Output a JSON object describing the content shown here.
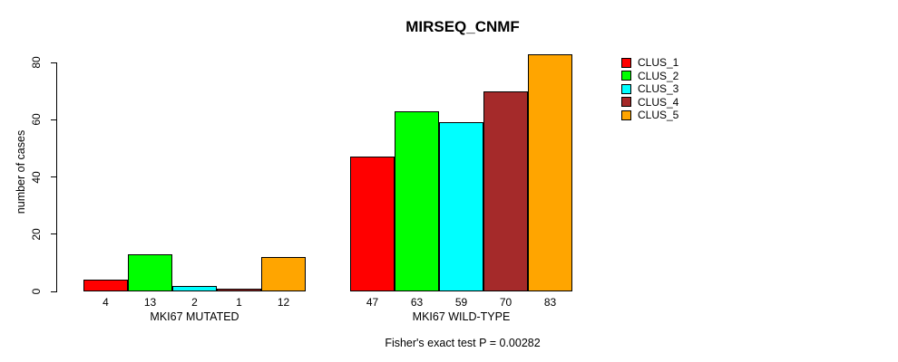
{
  "chart_data": {
    "type": "bar",
    "title": "MIRSEQ_CNMF",
    "ylabel": "number of cases",
    "xlabel": "",
    "annotation": "Fisher's exact test P = 0.00282",
    "yticks": [
      0,
      20,
      40,
      60,
      80
    ],
    "ylim": [
      0,
      87
    ],
    "grid": false,
    "legend_position": "right",
    "bar_value_labels_shown": true,
    "categories": [
      "MKI67 MUTATED",
      "MKI67 WILD-TYPE"
    ],
    "series": [
      {
        "name": "CLUS_1",
        "color": "#FF0000",
        "values": [
          4,
          47
        ]
      },
      {
        "name": "CLUS_2",
        "color": "#00FF00",
        "values": [
          13,
          63
        ]
      },
      {
        "name": "CLUS_3",
        "color": "#00FFFF",
        "values": [
          2,
          59
        ]
      },
      {
        "name": "CLUS_4",
        "color": "#A52A2A",
        "values": [
          1,
          70
        ]
      },
      {
        "name": "CLUS_5",
        "color": "#FFA500",
        "values": [
          12,
          83
        ]
      }
    ]
  }
}
